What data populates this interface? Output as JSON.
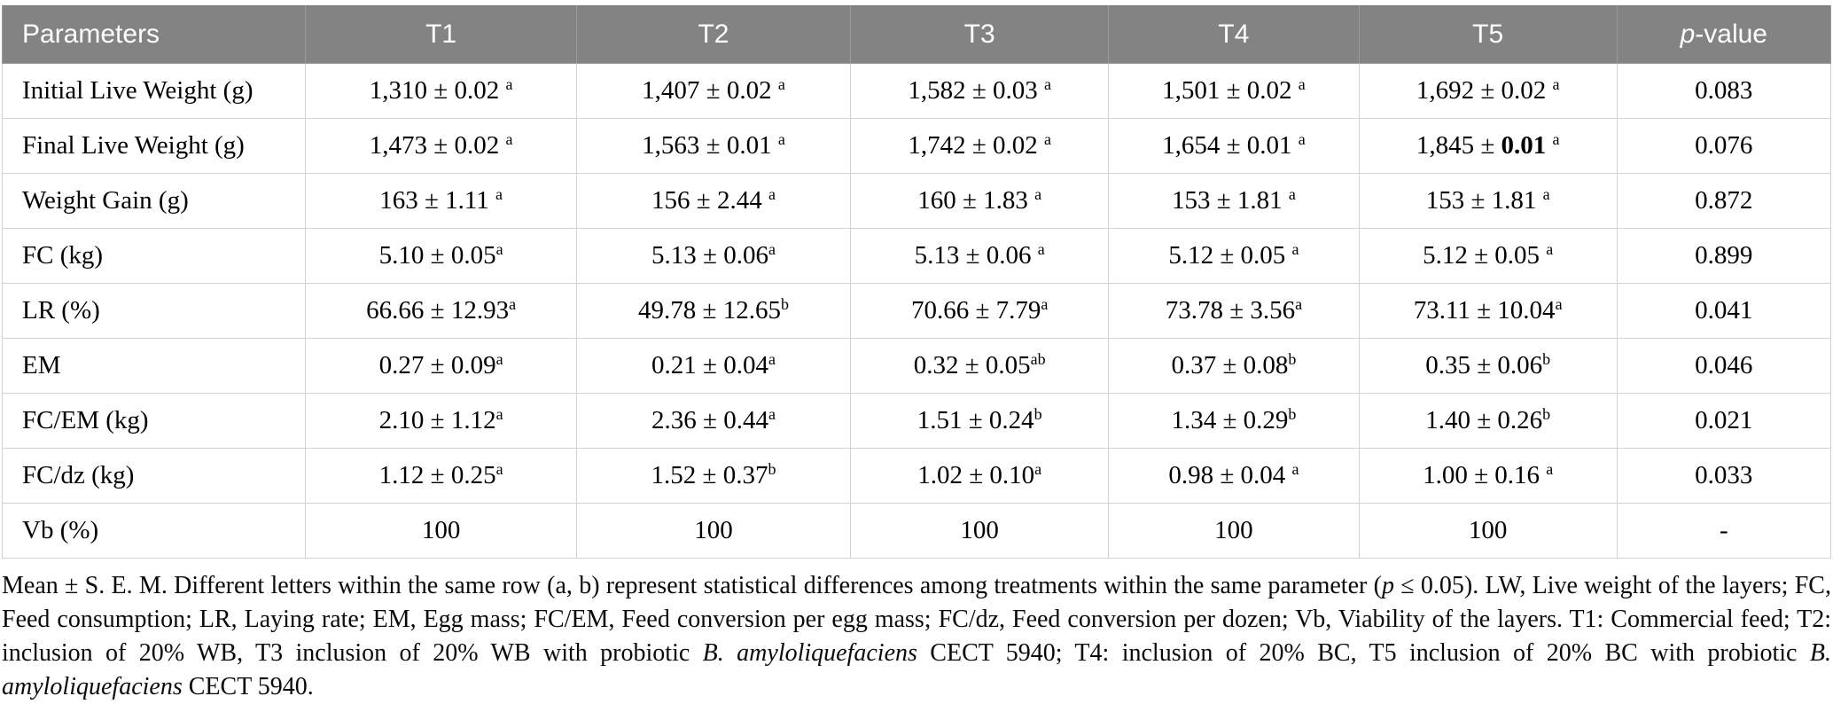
{
  "colors": {
    "header_bg": "#838383",
    "header_text": "#ffffff",
    "row_border": "#d2d2d2",
    "body_text": "#000000"
  },
  "table": {
    "columns": [
      {
        "key": "parameters",
        "label": "Parameters",
        "align": "left"
      },
      {
        "key": "t1",
        "label": "T1"
      },
      {
        "key": "t2",
        "label": "T2"
      },
      {
        "key": "t3",
        "label": "T3"
      },
      {
        "key": "t4",
        "label": "T4"
      },
      {
        "key": "t5",
        "label": "T5"
      },
      {
        "key": "p_value",
        "italic_part": "p",
        "label": "-value"
      }
    ],
    "col_widths_pct": [
      16.6,
      14.8,
      15.0,
      14.1,
      13.7,
      14.1,
      11.7
    ],
    "rows": [
      {
        "parameter": "Initial Live Weight (g)",
        "values": [
          {
            "text": "1,310 ± 0.02",
            "sup": "a",
            "sup_space": true
          },
          {
            "text": "1,407 ± 0.02",
            "sup": "a",
            "sup_space": true
          },
          {
            "text": "1,582 ± 0.03",
            "sup": "a",
            "sup_space": true
          },
          {
            "text": "1,501 ± 0.02",
            "sup": "a",
            "sup_space": true
          },
          {
            "text": "1,692 ± 0.02",
            "sup": "a",
            "sup_space": true
          }
        ],
        "p_value": "0.083"
      },
      {
        "parameter": "Final Live Weight (g)",
        "values": [
          {
            "text": "1,473 ± 0.02",
            "sup": "a",
            "sup_space": true
          },
          {
            "text": "1,563 ± 0.01",
            "sup": "a",
            "sup_space": true
          },
          {
            "text": "1,742 ± 0.02",
            "sup": "a",
            "sup_space": true
          },
          {
            "text": "1,654 ± 0.01",
            "sup": "a",
            "sup_space": true
          },
          {
            "text": "1,845 ± 0.01",
            "bold": "0.01",
            "sup": "a",
            "sup_space": true
          }
        ],
        "p_value": "0.076"
      },
      {
        "parameter": "Weight Gain (g)",
        "values": [
          {
            "text": "163 ± 1.11",
            "sup": "a",
            "sup_space": true
          },
          {
            "text": "156 ± 2.44",
            "sup": "a",
            "sup_space": true
          },
          {
            "text": "160 ± 1.83",
            "sup": "a",
            "sup_space": true
          },
          {
            "text": "153 ± 1.81",
            "sup": "a",
            "sup_space": true
          },
          {
            "text": "153 ± 1.81",
            "sup": "a",
            "sup_space": true
          }
        ],
        "p_value": "0.872"
      },
      {
        "parameter": "FC (kg)",
        "values": [
          {
            "text": "5.10 ± 0.05",
            "sup": "a",
            "sup_space": false
          },
          {
            "text": "5.13 ± 0.06",
            "sup": "a",
            "sup_space": false
          },
          {
            "text": "5.13 ± 0.06",
            "sup": "a",
            "sup_space": true
          },
          {
            "text": "5.12 ± 0.05",
            "sup": "a",
            "sup_space": true
          },
          {
            "text": "5.12 ± 0.05",
            "sup": "a",
            "sup_space": true
          }
        ],
        "p_value": "0.899"
      },
      {
        "parameter": "LR (%)",
        "values": [
          {
            "text": "66.66 ± 12.93",
            "sup": "a",
            "sup_space": false
          },
          {
            "text": "49.78 ± 12.65",
            "sup": "b",
            "sup_space": false
          },
          {
            "text": "70.66 ± 7.79",
            "sup": "a",
            "sup_space": false
          },
          {
            "text": "73.78 ± 3.56",
            "sup": "a",
            "sup_space": false
          },
          {
            "text": "73.11 ± 10.04",
            "sup": "a",
            "sup_space": false
          }
        ],
        "p_value": "0.041"
      },
      {
        "parameter": "EM",
        "values": [
          {
            "text": "0.27 ± 0.09",
            "sup": "a",
            "sup_space": false
          },
          {
            "text": "0.21 ± 0.04",
            "sup": "a",
            "sup_space": false
          },
          {
            "text": "0.32 ± 0.05",
            "sup": "ab",
            "sup_space": false
          },
          {
            "text": "0.37 ± 0.08",
            "sup": "b",
            "sup_space": false
          },
          {
            "text": "0.35 ± 0.06",
            "sup": "b",
            "sup_space": false
          }
        ],
        "p_value": "0.046"
      },
      {
        "parameter": "FC/EM (kg)",
        "values": [
          {
            "text": "2.10 ± 1.12",
            "sup": "a",
            "sup_space": false
          },
          {
            "text": "2.36 ± 0.44",
            "sup": "a",
            "sup_space": false
          },
          {
            "text": "1.51 ± 0.24",
            "sup": "b",
            "sup_space": false
          },
          {
            "text": "1.34 ± 0.29",
            "sup": "b",
            "sup_space": false
          },
          {
            "text": "1.40 ± 0.26",
            "sup": "b",
            "sup_space": false
          }
        ],
        "p_value": "0.021"
      },
      {
        "parameter": "FC/dz (kg)",
        "values": [
          {
            "text": "1.12 ± 0.25",
            "sup": "a",
            "sup_space": false
          },
          {
            "text": "1.52 ± 0.37",
            "sup": "b",
            "sup_space": false
          },
          {
            "text": "1.02 ± 0.10",
            "sup": "a",
            "sup_space": false
          },
          {
            "text": "0.98 ± 0.04",
            "sup": "a",
            "sup_space": true
          },
          {
            "text": "1.00 ± 0.16",
            "sup": "a",
            "sup_space": true
          }
        ],
        "p_value": "0.033"
      },
      {
        "parameter": "Vb (%)",
        "values": [
          {
            "text": "100"
          },
          {
            "text": "100"
          },
          {
            "text": "100"
          },
          {
            "text": "100"
          },
          {
            "text": "100"
          }
        ],
        "p_value": "-"
      }
    ]
  },
  "footnote": {
    "segments": [
      {
        "text": "Mean ± S. E. M. Different letters within the same row (a, b) represent statistical differences among treatments within the same parameter ("
      },
      {
        "text": "p",
        "italic": true
      },
      {
        "text": " ≤ 0.05). LW, Live weight of the layers; FC, Feed consumption; LR, Laying rate; EM, Egg mass; FC/EM, Feed conversion per egg mass; FC/dz, Feed conversion per dozen; Vb, Viability of the layers. T1: Commercial feed; T2: inclusion of 20% WB, T3 inclusion of 20% WB with probiotic "
      },
      {
        "text": "B. amyloliquefaciens",
        "italic": true
      },
      {
        "text": " CECT 5940; T4: inclusion of 20% BC, T5 inclusion of 20% BC with probiotic "
      },
      {
        "text": "B. amyloliquefaciens",
        "italic": true
      },
      {
        "text": " CECT 5940."
      }
    ]
  }
}
